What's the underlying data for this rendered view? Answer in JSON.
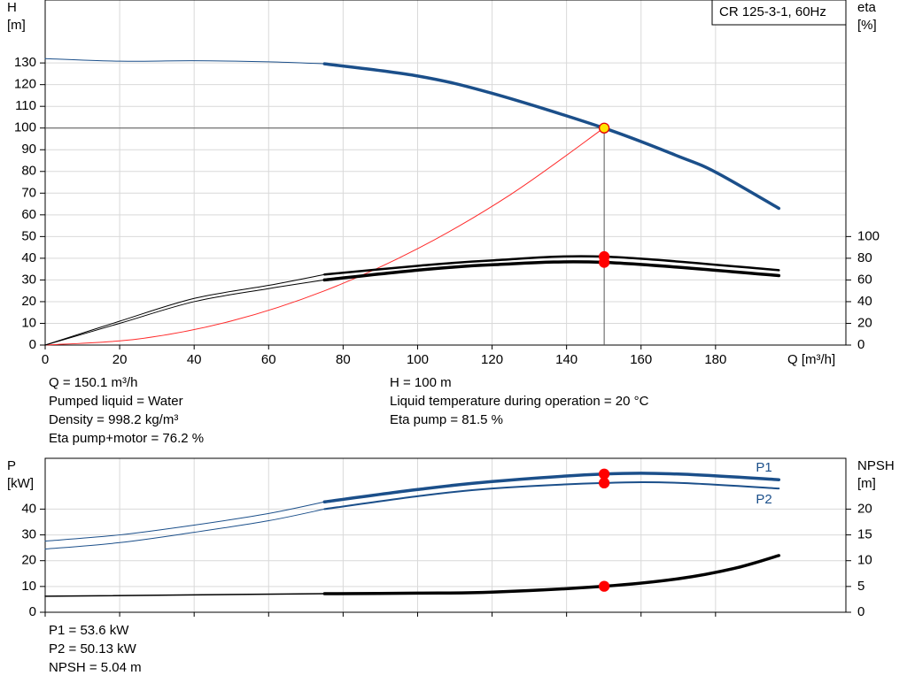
{
  "chart_data": [
    {
      "type": "line",
      "title": "CR 125-3-1, 60Hz",
      "xlabel": "Q [m³/h]",
      "ylabel": "H",
      "yunit": "[m]",
      "y2label": "eta",
      "y2unit": "[%]",
      "xlim": [
        0,
        215
      ],
      "xticks": [
        0,
        20,
        40,
        60,
        80,
        100,
        120,
        140,
        160,
        180
      ],
      "ylim": [
        0,
        159
      ],
      "yticks": [
        0,
        10,
        20,
        30,
        40,
        50,
        60,
        70,
        80,
        90,
        100,
        110,
        120,
        130
      ],
      "y2lim": [
        0,
        318
      ],
      "y2ticks": [
        0,
        20,
        40,
        60,
        80,
        100
      ],
      "grid": true,
      "xtick_labels": true,
      "series": [
        {
          "color": "#1b4f8a",
          "width": 1,
          "x": [
            0,
            20,
            40,
            60,
            75
          ],
          "values": [
            132,
            130.8,
            131,
            130.5,
            129.6
          ]
        },
        {
          "color": "#1b4f8a",
          "width": 3.5,
          "x": [
            75,
            100,
            120,
            150,
            170,
            180,
            197
          ],
          "values": [
            129.6,
            124,
            116,
            100,
            87,
            79.7,
            63
          ]
        },
        {
          "color": "#ff2a2a",
          "width": 1,
          "x": [
            0,
            25,
            50,
            75,
            100,
            125,
            150
          ],
          "values": [
            0,
            2.8,
            11.1,
            25,
            44.4,
            69.4,
            100
          ]
        },
        {
          "color": "#000000",
          "width": 1,
          "axis": "y2",
          "x": [
            0,
            20,
            40,
            60,
            75
          ],
          "values": [
            0,
            22,
            43,
            55,
            65
          ]
        },
        {
          "color": "#000000",
          "width": 2.5,
          "axis": "y2",
          "x": [
            75,
            100,
            120,
            150,
            197
          ],
          "values": [
            65,
            73,
            78,
            81.5,
            69
          ]
        },
        {
          "color": "#000000",
          "width": 1,
          "axis": "y2",
          "x": [
            0,
            20,
            40,
            60,
            75
          ],
          "values": [
            0,
            20,
            40,
            52,
            60
          ]
        },
        {
          "color": "#000000",
          "width": 3.5,
          "axis": "y2",
          "x": [
            75,
            100,
            120,
            150,
            197
          ],
          "values": [
            60,
            69,
            74,
            76.2,
            64
          ]
        }
      ],
      "markers": [
        {
          "x": 150.1,
          "y": 100,
          "color": "#ffe400",
          "edge": "#e00000",
          "crosshair": true
        },
        {
          "x": 150.1,
          "y": 81.5,
          "axis": "y2",
          "color": "#ff0000",
          "edge": "#ff0000"
        },
        {
          "x": 150.1,
          "y": 76.2,
          "axis": "y2",
          "color": "#ff0000",
          "edge": "#ff0000"
        }
      ],
      "info": [
        [
          "Q = 150.1 m³/h",
          "Pumped liquid = Water",
          "Density = 998.2 kg/m³",
          "Eta pump+motor = 76.2 %"
        ],
        [
          "H = 100 m",
          "Liquid temperature during operation = 20 °C",
          "Eta pump = 81.5 %"
        ]
      ]
    },
    {
      "type": "line",
      "ylabel": "P",
      "yunit": "[kW]",
      "y2label": "NPSH",
      "y2unit": "[m]",
      "xlim": [
        0,
        215
      ],
      "xticks": [
        0,
        20,
        40,
        60,
        80,
        100,
        120,
        140,
        160,
        180
      ],
      "ylim": [
        0,
        59.7
      ],
      "yticks": [
        0,
        10,
        20,
        30,
        40
      ],
      "y2lim": [
        0,
        29.85
      ],
      "y2ticks": [
        0,
        5,
        10,
        15,
        20
      ],
      "grid": true,
      "xtick_labels": false,
      "series": [
        {
          "color": "#1b4f8a",
          "width": 1,
          "x": [
            0,
            20,
            40,
            60,
            75
          ],
          "values": [
            27.6,
            30,
            33.8,
            38.3,
            42.8
          ]
        },
        {
          "name": "P1",
          "label_side": "above",
          "color": "#1b4f8a",
          "width": 3.5,
          "x": [
            75,
            100,
            120,
            150,
            170,
            197
          ],
          "values": [
            42.8,
            47.6,
            50.7,
            53.6,
            53.6,
            51.4
          ]
        },
        {
          "color": "#1b4f8a",
          "width": 1,
          "x": [
            0,
            20,
            40,
            60,
            75
          ],
          "values": [
            24.5,
            27,
            31,
            35.5,
            40
          ]
        },
        {
          "name": "P2",
          "label_side": "below",
          "color": "#1b4f8a",
          "width": 2,
          "x": [
            75,
            100,
            120,
            150,
            170,
            197
          ],
          "values": [
            40,
            45,
            48,
            50.13,
            50.2,
            48
          ]
        },
        {
          "color": "#000000",
          "width": 1.5,
          "axis": "y2",
          "x": [
            0,
            75
          ],
          "values": [
            3.1,
            3.6
          ]
        },
        {
          "color": "#000000",
          "width": 3.5,
          "axis": "y2",
          "x": [
            75,
            100,
            120,
            150,
            170,
            185,
            197
          ],
          "values": [
            3.6,
            3.7,
            3.9,
            5.04,
            6.5,
            8.5,
            11
          ]
        }
      ],
      "markers": [
        {
          "x": 150.1,
          "y": 53.6,
          "color": "#ff0000",
          "edge": "#ff0000"
        },
        {
          "x": 150.1,
          "y": 50.13,
          "color": "#ff0000",
          "edge": "#ff0000"
        },
        {
          "x": 150.1,
          "y": 5.04,
          "axis": "y2",
          "color": "#ff0000",
          "edge": "#ff0000"
        }
      ],
      "info": [
        [
          "P1 = 53.6 kW",
          "P2 = 50.13 kW",
          "NPSH = 5.04 m"
        ]
      ]
    }
  ]
}
